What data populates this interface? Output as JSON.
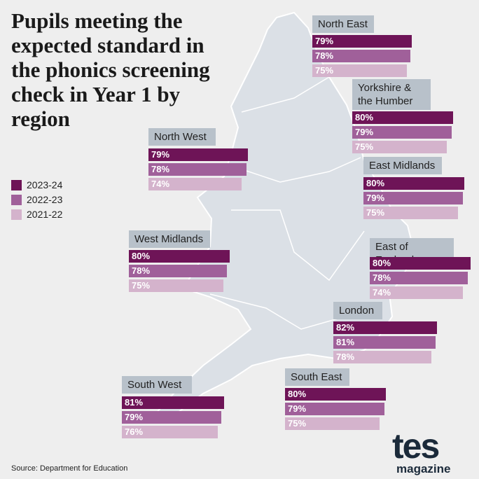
{
  "chart_data": {
    "type": "bar",
    "title": "Pupils meeting the expected standard in the phonics screening check in Year 1 by region",
    "categories": [
      "North East",
      "Yorkshire & the Humber",
      "North West",
      "East Midlands",
      "West Midlands",
      "East of England",
      "London",
      "South West",
      "South East"
    ],
    "series": [
      {
        "name": "2023-24",
        "color": "#6e1457",
        "values": [
          79,
          80,
          79,
          80,
          80,
          80,
          82,
          81,
          80
        ],
        "value_labels": [
          "79%",
          "80%",
          "79%",
          "80%",
          "80%",
          "80%",
          "82%",
          "81%",
          "80%"
        ]
      },
      {
        "name": "2022-23",
        "color": "#a0609a",
        "values": [
          78,
          79,
          78,
          79,
          78,
          78,
          81,
          79,
          79
        ],
        "value_labels": [
          "78%",
          "79%",
          "78%",
          "79%",
          "78%",
          "78%",
          "81%",
          "79%",
          "79%"
        ]
      },
      {
        "name": "2021-22",
        "color": "#d4b3cc",
        "values": [
          75,
          75,
          74,
          75,
          75,
          74,
          78,
          76,
          75
        ],
        "value_labels": [
          "75%",
          "75%",
          "74%",
          "75%",
          "75%",
          "74%",
          "78%",
          "76%",
          "75%"
        ]
      }
    ],
    "source": "Source: Department for Education",
    "logo": "tes",
    "logo_sub": "magazine"
  }
}
